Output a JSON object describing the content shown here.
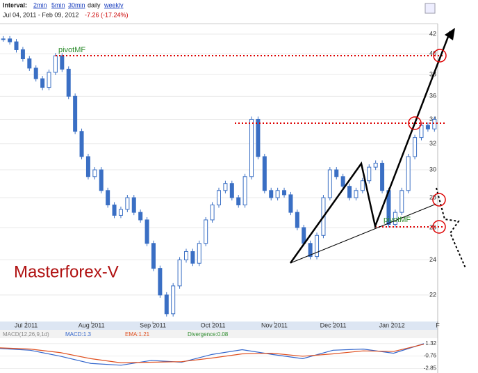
{
  "header": {
    "interval_label": "Interval:",
    "intervals": [
      "2min",
      "5min",
      "30min",
      "daily",
      "weekly"
    ],
    "range": "Jul 04, 2011 - Feb 09, 2012",
    "change": "-7.26 (-17.24%)"
  },
  "chart_data": [
    {
      "type": "candlestick",
      "color": "#3a6fc4",
      "log_scale": true,
      "values": [
        41.5,
        41.2,
        40.4,
        39.5,
        38.6,
        37.6,
        36.8,
        38.2,
        39.8,
        38.5,
        36,
        33,
        31,
        29.5,
        30,
        28.5,
        27.5,
        26.8,
        27.2,
        28,
        27,
        26.5,
        25,
        23.5,
        22,
        21,
        22.5,
        24,
        24.5,
        23.8,
        25,
        26.5,
        27.5,
        28.5,
        29,
        28,
        27.5,
        29.5,
        34,
        31,
        28.5,
        28,
        28.5,
        28.2,
        27,
        26,
        25,
        24.2,
        25.5,
        28,
        30,
        29.5,
        28.8,
        28,
        28.5,
        29.2,
        30.2,
        30.5,
        28.5,
        26.2,
        27,
        28.5,
        31,
        32.5,
        33.5,
        33.2,
        34
      ],
      "xlim": [
        0,
        67
      ],
      "xticks": [
        {
          "value": 4,
          "label": "Jul 2011"
        },
        {
          "value": 14,
          "label": "Aug 2011"
        },
        {
          "value": 23.4,
          "label": "Sep 2011"
        },
        {
          "value": 32.6,
          "label": "Oct 2011"
        },
        {
          "value": 42,
          "label": "Nov 2011"
        },
        {
          "value": 51,
          "label": "Dec 2011"
        },
        {
          "value": 60,
          "label": "Jan 2012"
        },
        {
          "value": 67,
          "label": "F"
        }
      ],
      "ylim": [
        20.6,
        42.8
      ],
      "yticks": [
        22,
        24,
        26,
        28,
        30,
        32,
        34,
        36,
        38,
        40,
        42
      ],
      "annotations": [
        "pivotMF",
        "pivotMF"
      ],
      "watermark": "Masterforex-V"
    },
    {
      "type": "line",
      "legend_title": "MACD(12,26,9,1d)",
      "divergence_label": "Divergence:0.08",
      "series": [
        {
          "name": "MACD:1.3",
          "color": "#3366cc",
          "values": [
            0.5,
            0.2,
            -0.8,
            -2.0,
            -2.3,
            -1.5,
            -1.8,
            -0.5,
            0.3,
            -0.5,
            -1.2,
            0.2,
            0.4,
            -0.3,
            1.3
          ]
        },
        {
          "name": "EMA:1.21",
          "color": "#e05020",
          "values": [
            0.6,
            0.4,
            -0.2,
            -1.2,
            -1.9,
            -1.8,
            -1.7,
            -1.1,
            -0.4,
            -0.3,
            -0.8,
            -0.4,
            0.1,
            0.0,
            1.21
          ]
        }
      ],
      "ylim": [
        -3.6,
        2.1
      ],
      "yticks": [
        1.32,
        -0.76,
        -2.85
      ]
    }
  ]
}
